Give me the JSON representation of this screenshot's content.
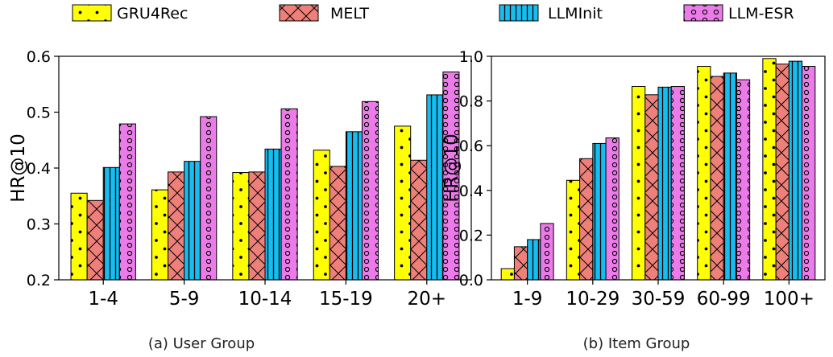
{
  "legend": {
    "position": "top",
    "entries": [
      {
        "label": "GRU4Rec",
        "color": "#ffff00",
        "pattern": "dots"
      },
      {
        "label": "MELT",
        "color": "#ee8079",
        "pattern": "cross"
      },
      {
        "label": "LLMInit",
        "color": "#16bdf0",
        "pattern": "vertical-lines"
      },
      {
        "label": "LLM-ESR",
        "color": "#ea7be8",
        "pattern": "circles"
      }
    ]
  },
  "chart_data": [
    {
      "type": "bar",
      "caption": "(a) User Group",
      "ylabel": "HR@10",
      "ylim": [
        0.2,
        0.6
      ],
      "yticks": [
        "0.2",
        "0.3",
        "0.4",
        "0.5",
        "0.6"
      ],
      "categories": [
        "1-4",
        "5-9",
        "10-14",
        "15-19",
        "20+"
      ],
      "series": [
        {
          "name": "GRU4Rec",
          "values": [
            0.355,
            0.361,
            0.392,
            0.432,
            0.475
          ]
        },
        {
          "name": "MELT",
          "values": [
            0.342,
            0.393,
            0.393,
            0.403,
            0.414
          ]
        },
        {
          "name": "LLMInit",
          "values": [
            0.401,
            0.412,
            0.434,
            0.465,
            0.531
          ]
        },
        {
          "name": "LLM-ESR",
          "values": [
            0.479,
            0.492,
            0.506,
            0.519,
            0.572
          ]
        }
      ]
    },
    {
      "type": "bar",
      "caption": "(b) Item Group",
      "ylabel": "HR@10",
      "ylim": [
        0.0,
        1.0
      ],
      "yticks": [
        "0.0",
        "0.2",
        "0.4",
        "0.6",
        "0.8",
        "1.0"
      ],
      "categories": [
        "1-9",
        "10-29",
        "30-59",
        "60-99",
        "100+"
      ],
      "series": [
        {
          "name": "GRU4Rec",
          "values": [
            0.05,
            0.445,
            0.865,
            0.955,
            0.99
          ]
        },
        {
          "name": "MELT",
          "values": [
            0.148,
            0.542,
            0.828,
            0.91,
            0.965
          ]
        },
        {
          "name": "LLMInit",
          "values": [
            0.18,
            0.61,
            0.862,
            0.925,
            0.978
          ]
        },
        {
          "name": "LLM-ESR",
          "values": [
            0.252,
            0.635,
            0.865,
            0.895,
            0.955
          ]
        }
      ]
    }
  ]
}
